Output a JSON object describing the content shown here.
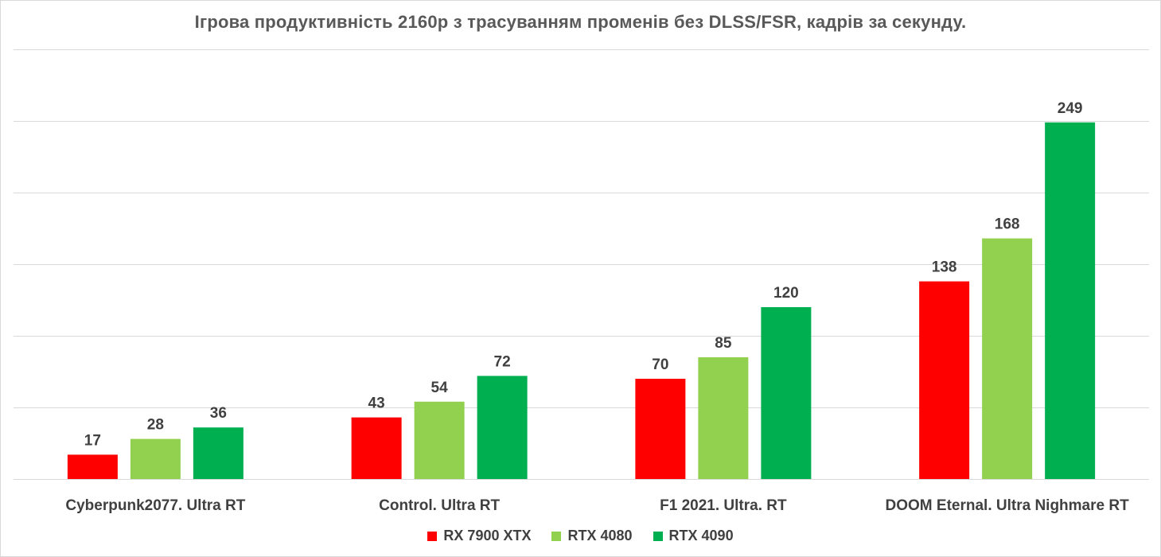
{
  "chart_data": {
    "type": "bar",
    "title": "Ігрова продуктивність 2160p з трасуванням променів без DLSS/FSR, кадрів за секунду.",
    "xlabel": "",
    "ylabel": "",
    "ylim": [
      0,
      300
    ],
    "y_axis_visible": false,
    "grid": true,
    "legend_position": "bottom",
    "categories": [
      "Cyberpunk2077. Ultra RT",
      "Control. Ultra RT",
      "F1 2021. Ultra. RT",
      "DOOM Eternal. Ultra Nighmare RT"
    ],
    "series": [
      {
        "name": "RX 7900 XTX",
        "color": "#ff0000",
        "values": [
          17,
          43,
          70,
          138
        ]
      },
      {
        "name": "RTX 4080",
        "color": "#92d050",
        "values": [
          28,
          54,
          85,
          168
        ]
      },
      {
        "name": "RTX 4090",
        "color": "#00b050",
        "values": [
          36,
          72,
          120,
          249
        ]
      }
    ]
  }
}
